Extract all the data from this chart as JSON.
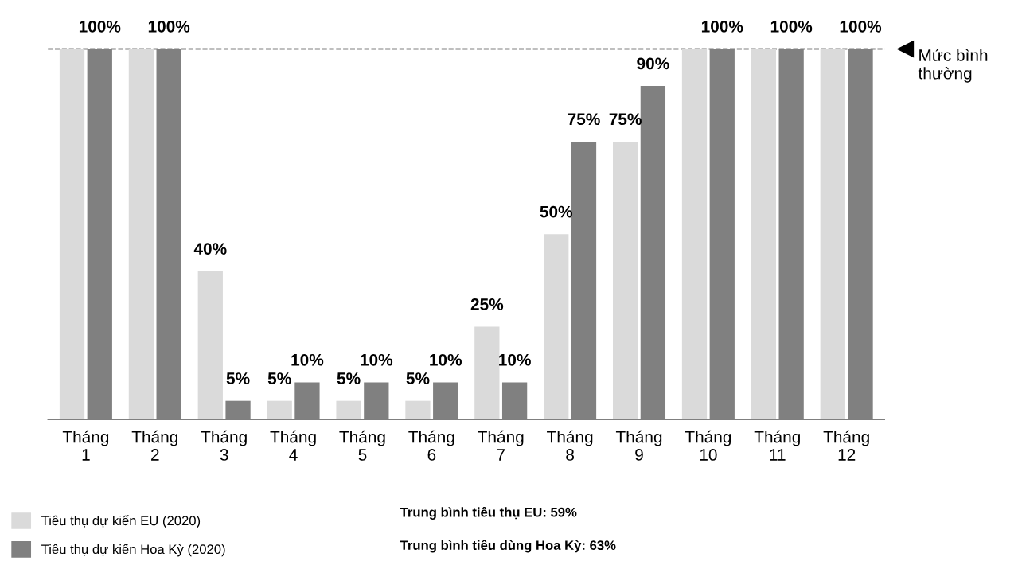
{
  "chart_data": {
    "type": "bar",
    "categories": [
      "Tháng\n1",
      "Tháng\n2",
      "Tháng\n3",
      "Tháng\n4",
      "Tháng\n5",
      "Tháng\n6",
      "Tháng\n7",
      "Tháng\n8",
      "Tháng\n9",
      "Tháng\n10",
      "Tháng\n11",
      "Tháng\n12"
    ],
    "series": [
      {
        "name": "Tiêu thụ dự kiến EU (2020)",
        "color": "#dadada",
        "values": [
          100,
          100,
          40,
          5,
          5,
          5,
          25,
          50,
          75,
          100,
          100,
          100
        ],
        "value_labels": [
          null,
          null,
          "40%",
          "5%",
          "5%",
          "5%",
          "25%",
          "50%",
          "75%",
          null,
          null,
          null
        ]
      },
      {
        "name": "Tiêu thụ dự kiến Hoa Kỳ (2020)",
        "color": "#808080",
        "values": [
          100,
          100,
          5,
          10,
          10,
          10,
          10,
          75,
          90,
          100,
          100,
          100
        ],
        "value_labels": [
          "100%",
          "100%",
          "5%",
          "10%",
          "10%",
          "10%",
          "10%",
          "75%",
          "90%",
          "100%",
          "100%",
          "100%"
        ]
      }
    ],
    "tick_labels": "x",
    "grid": false,
    "legend": "bottom left",
    "ref_lines": [
      {
        "axis": "y",
        "value": 100,
        "label": "Mức bình\nthường",
        "color": "#000000",
        "line_style": "dashed"
      }
    ],
    "annotations": [
      "Trung bình tiêu thụ EU: 59%",
      "Trung bình tiêu dùng Hoa Kỳ: 63%"
    ]
  }
}
